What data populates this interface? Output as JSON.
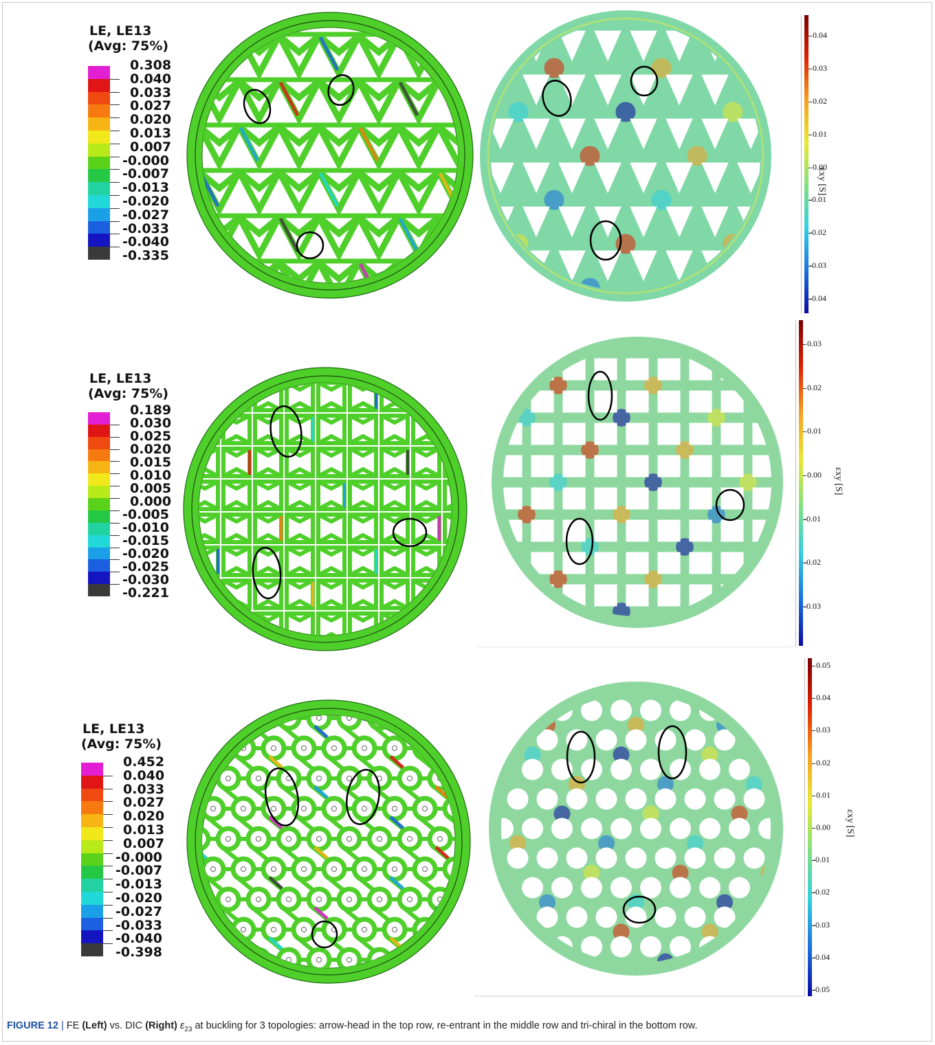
{
  "fe_panels": [
    {
      "title_line1": "LE, LE13",
      "title_line2": "(Avg: 75%)",
      "labels": [
        "0.308",
        "0.040",
        "0.033",
        "0.027",
        "0.020",
        "0.013",
        "0.007",
        "-0.000",
        "-0.007",
        "-0.013",
        "-0.020",
        "-0.027",
        "-0.033",
        "-0.040",
        "-0.335"
      ],
      "topology": "arrow-head"
    },
    {
      "title_line1": "LE, LE13",
      "title_line2": "(Avg: 75%)",
      "labels": [
        "0.189",
        "0.030",
        "0.025",
        "0.020",
        "0.015",
        "0.010",
        "0.005",
        "0.000",
        "-0.005",
        "-0.010",
        "-0.015",
        "-0.020",
        "-0.025",
        "-0.030",
        "-0.221"
      ],
      "topology": "re-entrant"
    },
    {
      "title_line1": "LE, LE13",
      "title_line2": "(Avg: 75%)",
      "labels": [
        "0.452",
        "0.040",
        "0.033",
        "0.027",
        "0.020",
        "0.013",
        "0.007",
        "-0.000",
        "-0.007",
        "-0.013",
        "-0.020",
        "-0.027",
        "-0.033",
        "-0.040",
        "-0.398"
      ],
      "topology": "tri-chiral"
    }
  ],
  "dic_panels": [
    {
      "ticks": [
        "0.04",
        "0.03",
        "0.02",
        "0.01",
        "0.00",
        "-0.01",
        "-0.02",
        "-0.03",
        "-0.04"
      ],
      "axis_label": "εxy [S]"
    },
    {
      "ticks": [
        "0.03",
        "0.02",
        "0.01",
        "0.00",
        "-0.01",
        "-0.02",
        "-0.03"
      ],
      "axis_label": "εxy [S]"
    },
    {
      "ticks": [
        "0.05",
        "0.04",
        "0.03",
        "0.02",
        "0.01",
        "0.00",
        "-0.01",
        "-0.02",
        "-0.03",
        "-0.04",
        "-0.05"
      ],
      "axis_label": "εxy [S]"
    }
  ],
  "fe_band_colors": [
    "#e21fd2",
    "#e01515",
    "#f04a10",
    "#f77a10",
    "#f7b515",
    "#f0e81a",
    "#b8ea1a",
    "#5ad21a",
    "#25c845",
    "#22d2a0",
    "#20d8d8",
    "#1ba0e8",
    "#1a60e0",
    "#1414c0",
    "#3a3a3a"
  ],
  "dic_gradient": [
    "#7a0000",
    "#e02000",
    "#f7a020",
    "#e8e830",
    "#80e080",
    "#30d0e0",
    "#1a70e0",
    "#0a0aa0"
  ],
  "caption": {
    "figure": "FIGURE 12",
    "sep": "|",
    "t1": "FE",
    "t2": "(Left)",
    "t3": "vs. DIC",
    "t4": "(Right)",
    "t5": "ε",
    "t6": "23",
    "t7": "at buckling for 3 topologies: arrow-head in the top row, re-entrant in the middle row and tri-chiral in the bottom row."
  }
}
